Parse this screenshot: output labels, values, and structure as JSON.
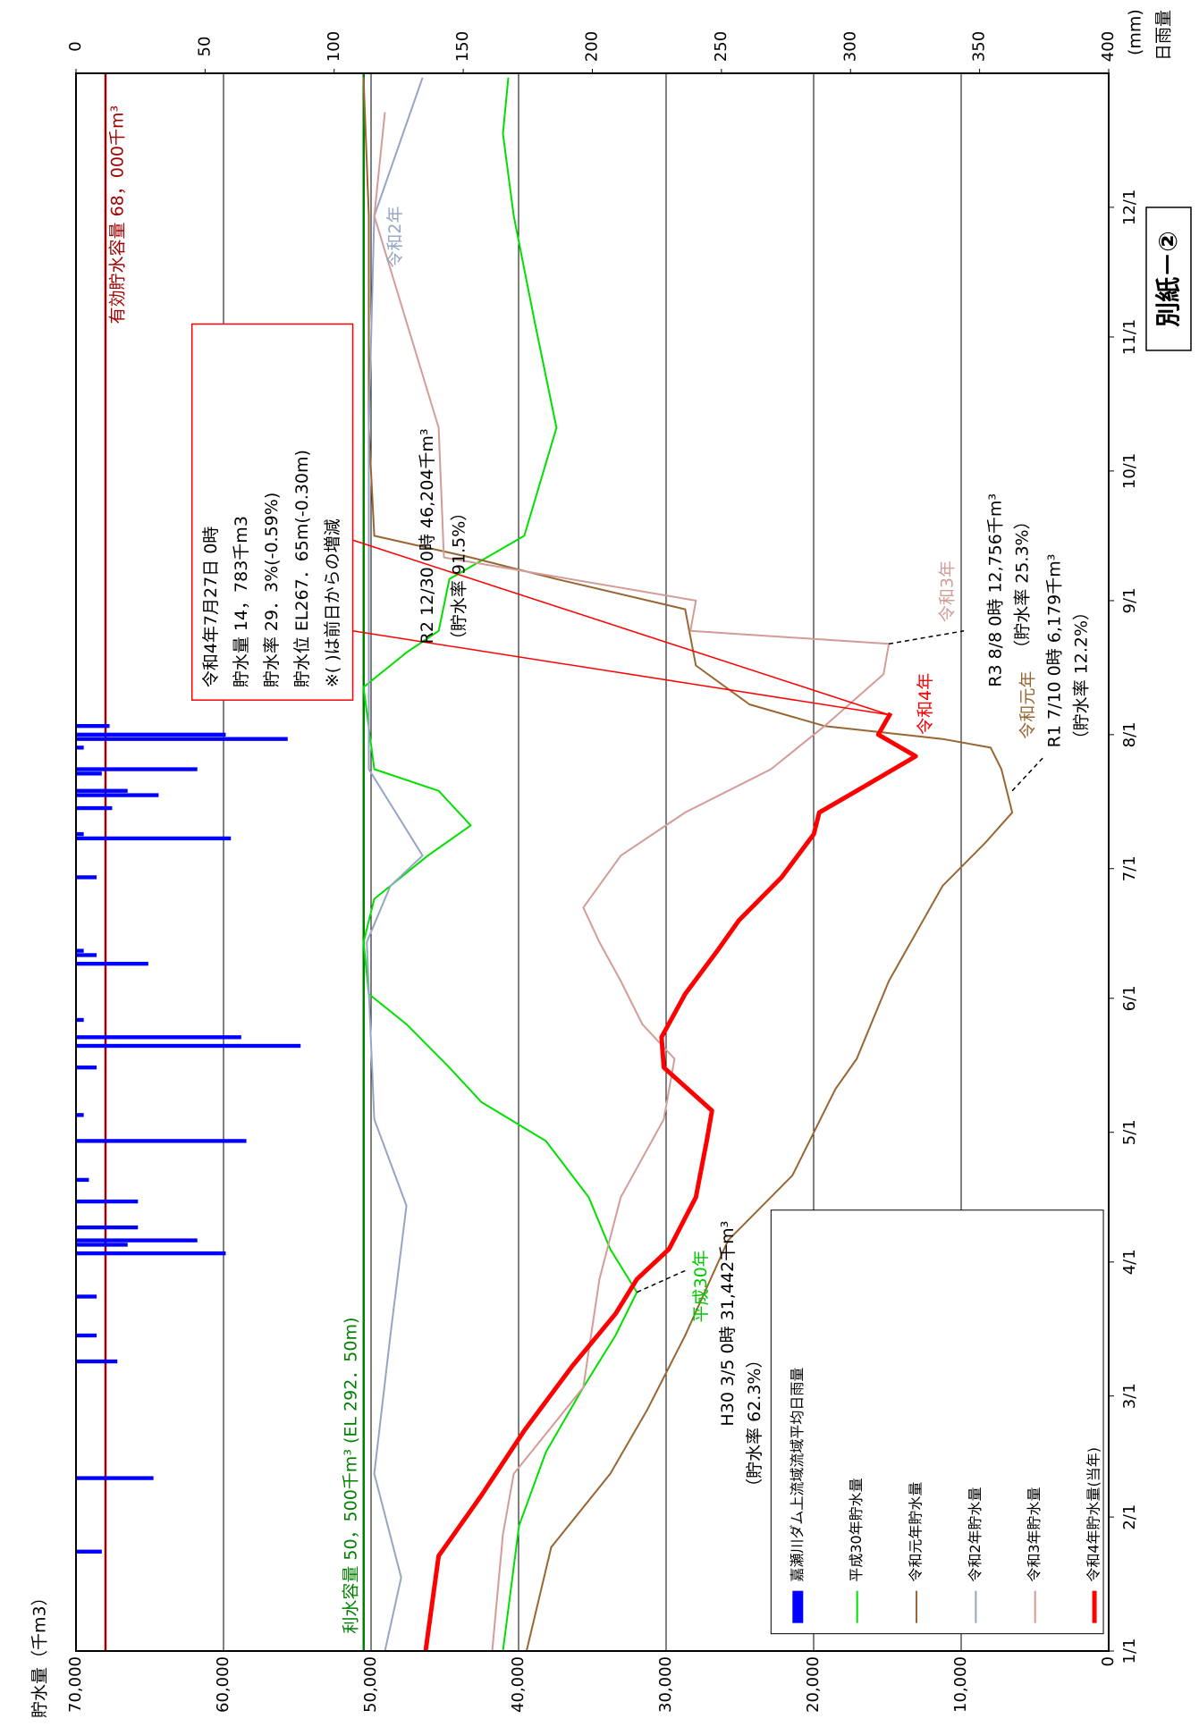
{
  "chart_data": {
    "type": "line",
    "y_label": "貯水量（千m3）",
    "y2_label": "日雨量",
    "y2_unit": "(mm)",
    "sheet_label": "別紙－②",
    "xlim": [
      0,
      365
    ],
    "xticks": [
      {
        "value": 0,
        "label": "1/1"
      },
      {
        "value": 31,
        "label": "2/1"
      },
      {
        "value": 59,
        "label": "3/1"
      },
      {
        "value": 90,
        "label": "4/1"
      },
      {
        "value": 120,
        "label": "5/1"
      },
      {
        "value": 151,
        "label": "6/1"
      },
      {
        "value": 181,
        "label": "7/1"
      },
      {
        "value": 212,
        "label": "8/1"
      },
      {
        "value": 243,
        "label": "9/1"
      },
      {
        "value": 273,
        "label": "10/1"
      },
      {
        "value": 304,
        "label": "11/1"
      },
      {
        "value": 334,
        "label": "12/1"
      }
    ],
    "ylim": [
      0,
      70000
    ],
    "yticks": [
      0,
      {
        "value": 10000,
        "label": "10,000"
      },
      {
        "value": 20000,
        "label": "20,000"
      },
      {
        "value": 30000,
        "label": "30,000"
      },
      {
        "value": 40000,
        "label": "40,000"
      },
      {
        "value": 50000,
        "label": "50,000"
      },
      {
        "value": 60000,
        "label": "60,000"
      },
      {
        "value": 70000,
        "label": "70,000"
      }
    ],
    "y2lim": [
      0,
      400
    ],
    "y2ticks": [
      0,
      50,
      100,
      150,
      200,
      250,
      300,
      350,
      400
    ],
    "y2_inverted": true,
    "grid": true,
    "series": [
      {
        "name": "嘉瀬川ダム上流域流域平均日雨量",
        "type": "bar",
        "axis": "y2",
        "color": "#0000ff",
        "x": [
          23,
          40,
          67,
          73,
          82,
          92,
          94,
          95,
          98,
          104,
          109,
          118,
          124,
          135,
          140,
          142,
          146,
          159,
          161,
          162,
          179,
          188,
          189,
          195,
          198,
          199,
          203,
          204,
          209,
          211,
          212,
          214
        ],
        "values": [
          10,
          30,
          16,
          8,
          8,
          58,
          20,
          47,
          24,
          24,
          5,
          66,
          3,
          8,
          87,
          64,
          3,
          28,
          8,
          3,
          8,
          60,
          3,
          14,
          32,
          20,
          10,
          47,
          3,
          82,
          58,
          13
        ]
      },
      {
        "name": "平成30年貯水量",
        "color": "#00e000",
        "width": 2,
        "x": [
          0,
          29,
          46,
          61,
          73,
          83,
          93,
          105,
          118,
          127,
          135,
          145,
          152,
          164,
          174,
          184,
          191,
          199,
          204,
          223,
          231,
          236,
          248,
          258,
          283,
          307,
          332,
          351,
          364
        ],
        "values": [
          41060,
          39970,
          38150,
          35610,
          33430,
          31980,
          33790,
          35250,
          38150,
          42520,
          44690,
          47600,
          50150,
          50510,
          49780,
          46150,
          43240,
          45420,
          49780,
          50510,
          47600,
          45420,
          44690,
          39610,
          37430,
          38880,
          40330,
          41060,
          40700
        ]
      },
      {
        "name": "令和元年貯水量",
        "color": "#996633",
        "width": 2,
        "x": [
          0,
          24,
          41,
          56,
          73,
          95,
          110,
          130,
          137,
          155,
          177,
          187,
          194,
          204,
          209,
          211,
          214,
          219,
          228,
          241,
          248,
          253,
          258,
          283,
          332,
          364
        ],
        "values": [
          39460,
          37790,
          33790,
          31250,
          28710,
          25800,
          21440,
          18530,
          17080,
          14900,
          11260,
          8360,
          6540,
          7270,
          8000,
          11260,
          19260,
          24350,
          27980,
          28710,
          37430,
          43240,
          49780,
          50150,
          50150,
          50510
        ]
      },
      {
        "name": "令和2年貯水量",
        "color": "#94a6c4",
        "width": 2,
        "x": [
          0,
          17,
          41,
          73,
          103,
          123,
          164,
          177,
          184,
          194,
          204,
          283,
          332,
          364
        ],
        "values": [
          49060,
          47960,
          49780,
          48690,
          47600,
          49780,
          50290,
          48690,
          46510,
          48330,
          50150,
          50150,
          49780,
          46510
        ]
      },
      {
        "name": "令和3年貯水量",
        "color": "#d39c96",
        "width": 2,
        "x": [
          0,
          27,
          41,
          61,
          86,
          105,
          123,
          137,
          145,
          155,
          164,
          172,
          184,
          194,
          204,
          214,
          226,
          233,
          236,
          243,
          253,
          283,
          332,
          356
        ],
        "values": [
          41790,
          41060,
          40330,
          35610,
          34520,
          33070,
          30160,
          29430,
          31610,
          33070,
          34520,
          35610,
          33070,
          28710,
          22890,
          19260,
          15260,
          14900,
          28350,
          27980,
          45060,
          45420,
          49780,
          49060
        ]
      },
      {
        "name": "令和4年貯水量(当年)",
        "color": "#ff0000",
        "width": 5,
        "x": [
          0,
          22,
          36,
          51,
          66,
          78,
          86,
          93,
          105,
          118,
          125,
          135,
          142,
          152,
          162,
          169,
          179,
          189,
          194,
          199,
          207,
          212,
          217
        ],
        "values": [
          46300,
          45420,
          42520,
          39610,
          36340,
          33430,
          31980,
          29800,
          27980,
          27250,
          26890,
          30160,
          30310,
          28710,
          26530,
          25070,
          22170,
          19990,
          19620,
          17080,
          13080,
          15620,
          14783
        ]
      }
    ],
    "reference_lines": [
      {
        "label": "有効貯水容量 68，000千m³",
        "value": 68000,
        "color": "#a00000"
      },
      {
        "label": "利水容量 50，500千m³ (EL 292．50m)",
        "value": 50500,
        "color": "#008000"
      }
    ],
    "callout": [
      "令和4年7月27日 0時",
      "貯水量 14，783千m3",
      "貯水率 29．3%(-0.59%)",
      "貯水位 EL267．65m(-0.30m)",
      "※( )は前日からの増減"
    ],
    "annotations": [
      "令和4年",
      "平成30年",
      "H30 3/5 0時 31,442千m³",
      "（貯水率 62.3%）",
      "令和元年",
      "R1 7/10 0時 6,179千m³",
      "（貯水率 12.2%）",
      "令和3年",
      "R3 8/8 0時 12,756千m³",
      "（貯水率 25.3%）",
      "令和2年",
      "R2 12/30 0時 46,204千m³",
      "（貯水率 91.5%）"
    ]
  }
}
